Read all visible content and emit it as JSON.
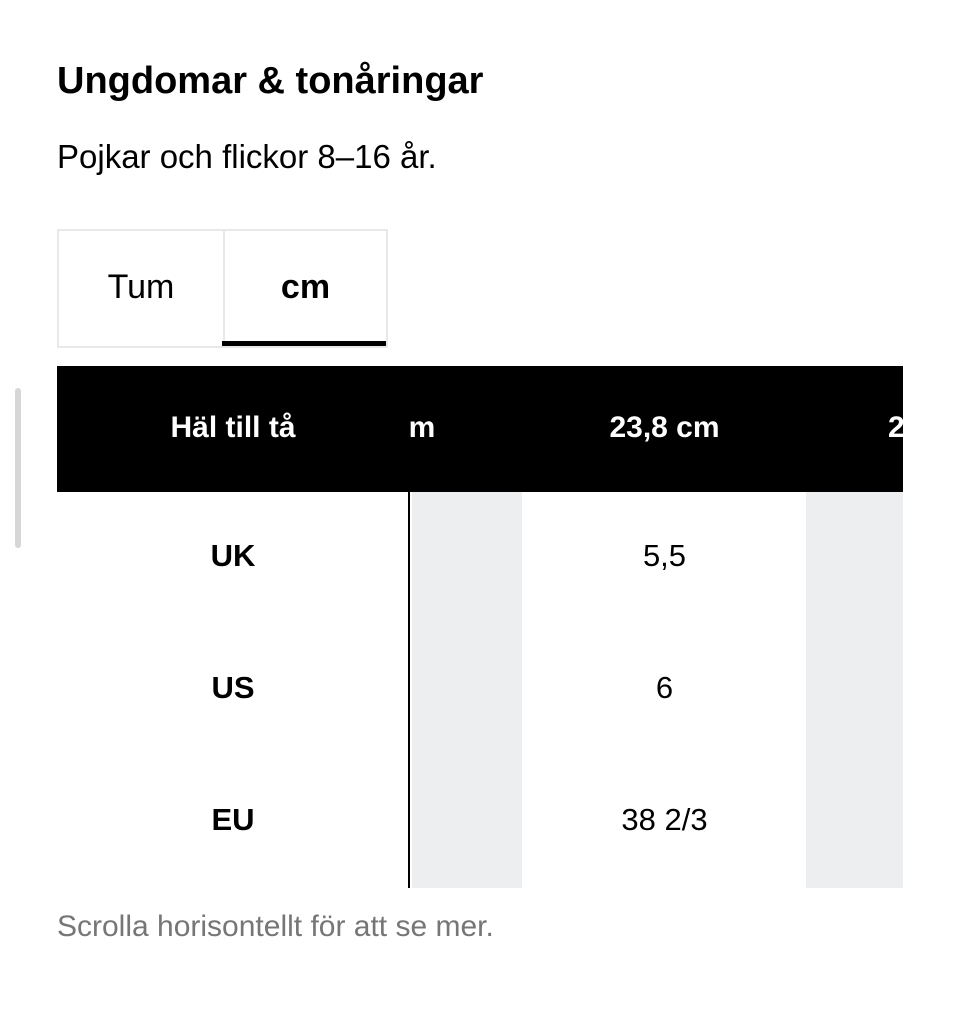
{
  "header": {
    "title": "Ungdomar & tonåringar",
    "subtitle": "Pojkar och flickor 8–16 år."
  },
  "tabs": [
    "Tum",
    "cm"
  ],
  "table": {
    "header": [
      "Häl till tå",
      "m",
      "23,8 cm",
      "2"
    ],
    "rows": [
      [
        "UK",
        "5,5"
      ],
      [
        "US",
        "6"
      ],
      [
        "EU",
        "38 2/3"
      ]
    ]
  },
  "footer": "Scrolla horisontellt för att se mer."
}
